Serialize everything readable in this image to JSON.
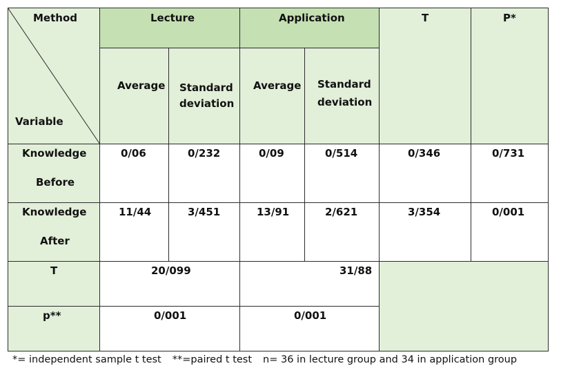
{
  "header": {
    "method": "Method",
    "variable": "Variable",
    "lecture": "Lecture",
    "application": "Application",
    "t": "T",
    "p": "P*",
    "average": "Average",
    "std_line1": "Standard",
    "std_line2": "deviation"
  },
  "rows": [
    {
      "label_line1": "Knowledge",
      "label_line2": "Before",
      "lecture_avg": "0/06",
      "lecture_sd": "0/232",
      "app_avg": "0/09",
      "app_sd": "0/514",
      "t": "0/346",
      "p": "0/731"
    },
    {
      "label_line1": "Knowledge",
      "label_line2": "After",
      "lecture_avg": "11/44",
      "lecture_sd": "3/451",
      "app_avg": "13/91",
      "app_sd": "2/621",
      "t": "3/354",
      "p": "0/001"
    }
  ],
  "summary": {
    "t_label": "T",
    "t_lecture": "20/099",
    "t_application": "31/88",
    "p_label": "p**",
    "p_lecture": "0/001",
    "p_application": "0/001"
  },
  "footnote": {
    "independent": "*= independent sample t test",
    "paired": "**=paired t test",
    "n": "n= 36 in lecture group and 34 in application group"
  },
  "colors": {
    "light_green": "#e2efd9",
    "green": "#c5e0b3",
    "border": "#2b2b2b"
  }
}
